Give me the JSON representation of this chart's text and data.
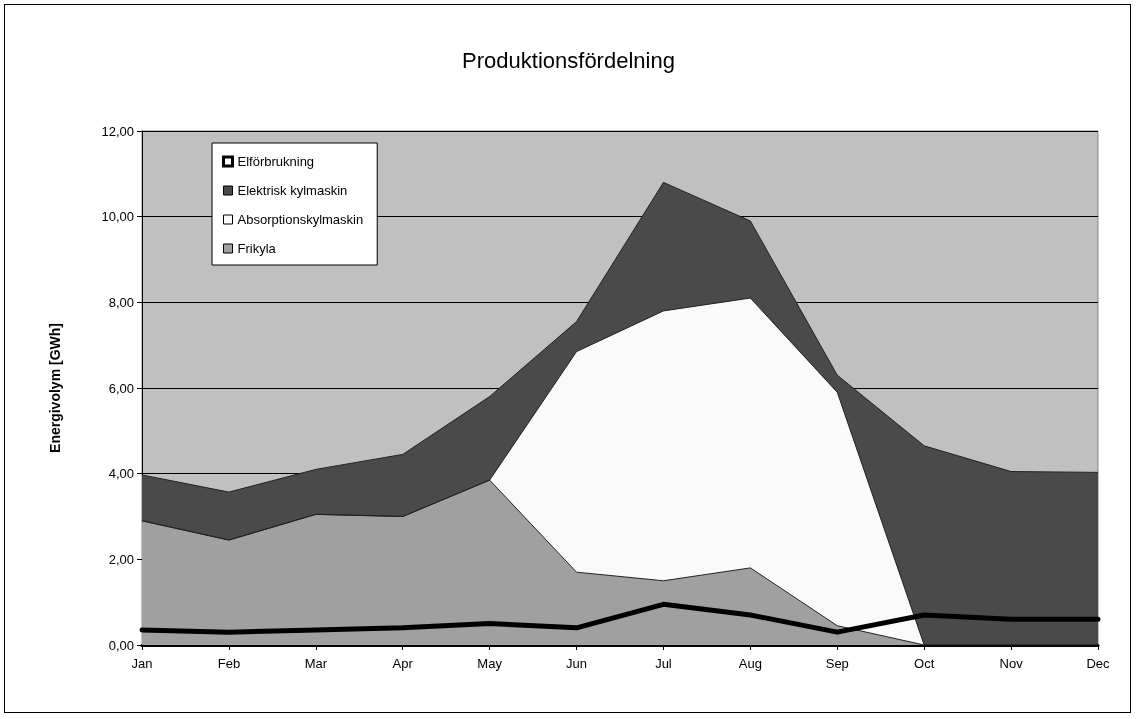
{
  "chart_data": {
    "type": "area",
    "title": "Produktionsfördelning",
    "ylabel": "Energivolym [GWh]",
    "categories": [
      "Jan",
      "Feb",
      "Mar",
      "Apr",
      "May",
      "Jun",
      "Jul",
      "Aug",
      "Sep",
      "Oct",
      "Nov",
      "Dec"
    ],
    "stacked": true,
    "series": [
      {
        "name": "Frikyla",
        "color": "#a0a0a0",
        "values": [
          2.9,
          2.45,
          3.05,
          3.0,
          3.85,
          1.7,
          1.5,
          1.8,
          0.45,
          0,
          0,
          0
        ]
      },
      {
        "name": "Absorptionskylmaskin",
        "color": "#fafafa",
        "values": [
          0,
          0,
          0,
          0,
          0,
          5.15,
          6.3,
          6.3,
          5.45,
          0,
          0,
          0
        ]
      },
      {
        "name": "Elektrisk kylmaskin",
        "color": "#4a4a4a",
        "values": [
          1.07,
          1.12,
          1.05,
          1.45,
          1.95,
          0.7,
          3.0,
          1.8,
          0.4,
          4.65,
          4.05,
          4.03
        ]
      },
      {
        "name": "Elförbrukning",
        "type": "line",
        "color": "#000000",
        "values": [
          0.35,
          0.3,
          0.35,
          0.4,
          0.5,
          0.4,
          0.95,
          0.7,
          0.3,
          0.7,
          0.6,
          0.6
        ]
      }
    ],
    "ylim": [
      0,
      12
    ],
    "yticks": [
      {
        "value": 0,
        "label": "0,00"
      },
      {
        "value": 2,
        "label": "2,00"
      },
      {
        "value": 4,
        "label": "4,00"
      },
      {
        "value": 6,
        "label": "6,00"
      },
      {
        "value": 8,
        "label": "8,00"
      },
      {
        "value": 10,
        "label": "10,00"
      },
      {
        "value": 12,
        "label": "12,00"
      }
    ],
    "grid": "y",
    "legend": "top left",
    "marker": "none",
    "line_style": "solid"
  }
}
